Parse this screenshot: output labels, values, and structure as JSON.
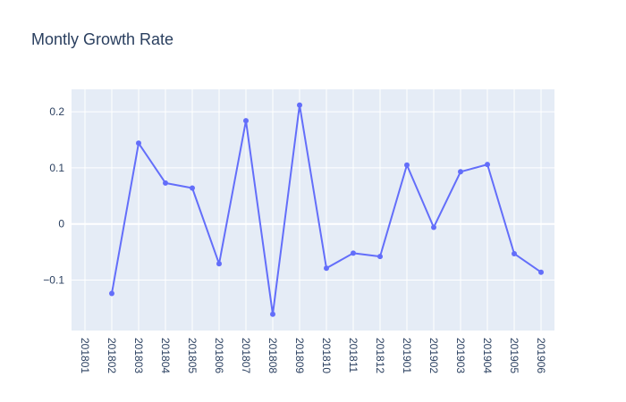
{
  "chart_data": {
    "type": "line",
    "title": "Montly Growth Rate",
    "x": [
      "201801",
      "201802",
      "201803",
      "201804",
      "201805",
      "201806",
      "201807",
      "201808",
      "201809",
      "201810",
      "201811",
      "201812",
      "201901",
      "201902",
      "201903",
      "201904",
      "201905",
      "201906"
    ],
    "series": [
      {
        "values": [
          null,
          -0.124,
          0.144,
          0.073,
          0.064,
          -0.071,
          0.184,
          -0.161,
          0.212,
          -0.079,
          -0.052,
          -0.058,
          0.105,
          -0.006,
          0.093,
          0.106,
          -0.053,
          -0.086
        ]
      }
    ],
    "yticks": [
      -0.1,
      0,
      0.1,
      0.2
    ],
    "ytick_labels": [
      "−0.1",
      "0",
      "0.1",
      "0.2"
    ],
    "ylim": [
      -0.19,
      0.24
    ],
    "grid": true,
    "colors": {
      "line": "#636efa",
      "plot_bg": "#e5ecf6",
      "grid": "#ffffff",
      "text": "#2a3f5f"
    }
  }
}
